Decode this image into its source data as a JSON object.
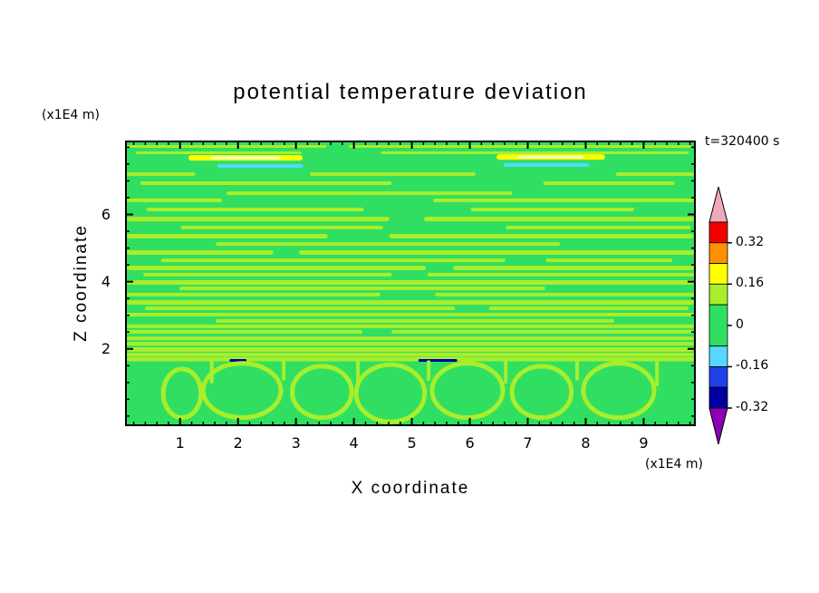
{
  "page": {
    "background": "#ffffff"
  },
  "chart_data": {
    "type": "heatmap",
    "subtype": "filled-contour",
    "title": "potential temperature deviation",
    "xlabel": "X coordinate",
    "x_unit": "(x1E4 m)",
    "ylabel": "Z coordinate",
    "y_unit": "(x1E4 m)",
    "time_label": "t=320400 s",
    "x_range": [
      0.05,
      9.9
    ],
    "x_ticks": [
      1,
      2,
      3,
      4,
      5,
      6,
      7,
      8,
      9
    ],
    "x_minor_step": 0.2,
    "z_range": [
      -0.3,
      8.2
    ],
    "z_ticks": [
      2,
      4,
      6
    ],
    "z_minor_step": 0.5,
    "grid": false,
    "legend_position": "right-colorbar",
    "structure": "stratified thin horizontal bands of weakly positive deviation above z=2x1E4 m; convective plume cells below z=2x1E4 m; faint cyan (negative) streaks near top; tiny negative dashes at z=2",
    "colorbar": {
      "labels": [
        "0.32",
        "0.16",
        "0",
        "-0.16",
        "-0.32"
      ],
      "contour_interval": 0.08,
      "band_values": [
        [
          0.32,
          0.4
        ],
        [
          0.24,
          0.32
        ],
        [
          0.16,
          0.24
        ],
        [
          0.08,
          0.16
        ],
        [
          -0.08,
          0.08
        ],
        [
          -0.16,
          -0.08
        ],
        [
          -0.24,
          -0.16
        ],
        [
          -0.32,
          -0.24
        ]
      ],
      "band_colors": [
        "#f20000",
        "#ff9100",
        "#ffff00",
        "#a8ee2b",
        "#30df62",
        "#55d8ff",
        "#2040e8",
        "#0000a0"
      ],
      "band_units": [
        1,
        1,
        1,
        1,
        2,
        1,
        1,
        1
      ],
      "over_color": "#f0a9b8",
      "under_color": "#8c00b4"
    }
  },
  "render": {
    "colors": {
      "green": "#30df62",
      "yg": "#a8ee2b",
      "y": "#ffff00",
      "c": "#55d8ff",
      "b": "#0000a0",
      "core": "#fdfccb"
    },
    "streak_format": [
      "x_frac",
      "width_frac",
      "y_frac",
      "height_px",
      "color_key"
    ],
    "streaks": [
      [
        0.003,
        0.35,
        0.016,
        3,
        "yg"
      ],
      [
        0.392,
        0.6,
        0.016,
        3,
        "yg"
      ],
      [
        0.019,
        0.29,
        0.038,
        3,
        "yg"
      ],
      [
        0.448,
        0.54,
        0.038,
        3,
        "yg"
      ],
      [
        0.111,
        0.2,
        0.051,
        6,
        "y"
      ],
      [
        0.651,
        0.19,
        0.048,
        6,
        "y"
      ],
      [
        0.162,
        0.15,
        0.083,
        4,
        "c"
      ],
      [
        0.663,
        0.15,
        0.079,
        4,
        "c"
      ],
      [
        0.003,
        0.12,
        0.111,
        4,
        "yg"
      ],
      [
        0.324,
        0.29,
        0.111,
        4,
        "yg"
      ],
      [
        0.86,
        0.137,
        0.111,
        4,
        "yg"
      ],
      [
        0.027,
        0.44,
        0.143,
        4,
        "yg"
      ],
      [
        0.733,
        0.23,
        0.143,
        4,
        "yg"
      ],
      [
        0.178,
        0.5,
        0.178,
        4,
        "yg"
      ],
      [
        0.003,
        0.167,
        0.203,
        4,
        "yg"
      ],
      [
        0.54,
        0.457,
        0.203,
        4,
        "yg"
      ],
      [
        0.038,
        0.38,
        0.235,
        4,
        "yg"
      ],
      [
        0.606,
        0.286,
        0.235,
        4,
        "yg"
      ],
      [
        0.003,
        0.46,
        0.267,
        5,
        "yg"
      ],
      [
        0.524,
        0.473,
        0.267,
        5,
        "yg"
      ],
      [
        0.098,
        0.354,
        0.298,
        4,
        "yg"
      ],
      [
        0.667,
        0.324,
        0.298,
        4,
        "yg"
      ],
      [
        0.003,
        0.352,
        0.327,
        5,
        "yg"
      ],
      [
        0.463,
        0.533,
        0.327,
        5,
        "yg"
      ],
      [
        0.159,
        0.603,
        0.356,
        4,
        "yg"
      ],
      [
        0.003,
        0.257,
        0.384,
        5,
        "yg"
      ],
      [
        0.305,
        0.692,
        0.384,
        5,
        "yg"
      ],
      [
        0.063,
        0.603,
        0.413,
        4,
        "yg"
      ],
      [
        0.737,
        0.222,
        0.413,
        4,
        "yg"
      ],
      [
        0.003,
        0.524,
        0.438,
        5,
        "yg"
      ],
      [
        0.575,
        0.422,
        0.438,
        5,
        "yg"
      ],
      [
        0.032,
        0.435,
        0.463,
        4,
        "yg"
      ],
      [
        0.53,
        0.467,
        0.463,
        4,
        "yg"
      ],
      [
        0.003,
        0.994,
        0.489,
        5,
        "yg"
      ],
      [
        0.095,
        0.641,
        0.511,
        4,
        "yg"
      ],
      [
        0.003,
        0.444,
        0.533,
        4,
        "yg"
      ],
      [
        0.543,
        0.454,
        0.533,
        4,
        "yg"
      ],
      [
        0.003,
        0.994,
        0.559,
        5,
        "yg"
      ],
      [
        0.035,
        0.543,
        0.581,
        4,
        "yg"
      ],
      [
        0.638,
        0.349,
        0.581,
        4,
        "yg"
      ],
      [
        0.003,
        0.994,
        0.603,
        4,
        "yg"
      ],
      [
        0.159,
        0.698,
        0.625,
        4,
        "yg"
      ],
      [
        0.003,
        0.994,
        0.644,
        4,
        "yg"
      ],
      [
        0.003,
        0.413,
        0.663,
        4,
        "yg"
      ],
      [
        0.467,
        0.53,
        0.663,
        4,
        "yg"
      ],
      [
        0.003,
        0.994,
        0.686,
        4,
        "yg"
      ],
      [
        0.003,
        0.994,
        0.705,
        4,
        "yg"
      ],
      [
        0.003,
        0.994,
        0.724,
        5,
        "yg"
      ],
      [
        0.003,
        0.994,
        0.743,
        4,
        "yg"
      ],
      [
        0.003,
        0.994,
        0.757,
        5,
        "yg"
      ],
      [
        0.183,
        0.03,
        0.765,
        3,
        "b"
      ],
      [
        0.514,
        0.068,
        0.765,
        3,
        "b"
      ]
    ],
    "plume_format": [
      "cx_frac",
      "cy_frac",
      "rx_frac",
      "ry_frac"
    ],
    "plumes": [
      [
        0.1,
        0.885,
        0.033,
        0.085
      ],
      [
        0.205,
        0.875,
        0.068,
        0.095
      ],
      [
        0.345,
        0.88,
        0.052,
        0.09
      ],
      [
        0.465,
        0.885,
        0.06,
        0.1
      ],
      [
        0.6,
        0.875,
        0.062,
        0.095
      ],
      [
        0.73,
        0.88,
        0.052,
        0.09
      ],
      [
        0.865,
        0.875,
        0.062,
        0.095
      ]
    ],
    "stem_format": [
      "x_frac",
      "y1_frac",
      "y2_frac"
    ],
    "stems": [
      [
        0.152,
        0.77,
        0.85
      ],
      [
        0.278,
        0.77,
        0.84
      ],
      [
        0.408,
        0.77,
        0.86
      ],
      [
        0.532,
        0.77,
        0.84
      ],
      [
        0.667,
        0.77,
        0.85
      ],
      [
        0.792,
        0.77,
        0.84
      ],
      [
        0.932,
        0.77,
        0.86
      ]
    ]
  }
}
